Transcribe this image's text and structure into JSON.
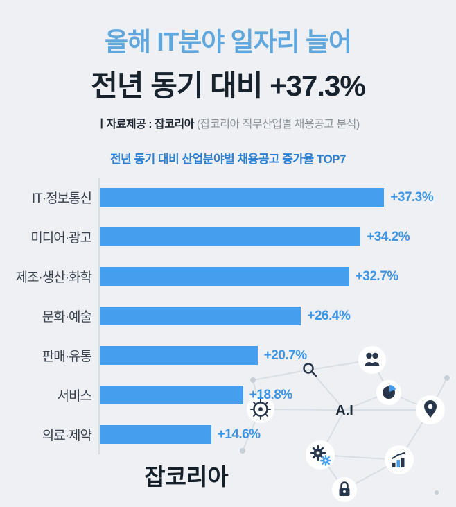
{
  "header": {
    "title_line1": "올해 IT분야 일자리 늘어",
    "title_line2": "전년 동기 대비 +37.3%",
    "source_prefix": "ㅣ자료제공 : ",
    "source_bold": "잡코리아",
    "source_suffix": " (잡코리아 직무산업별 채용공고 분석)"
  },
  "chart_data": {
    "type": "bar",
    "orientation": "horizontal",
    "title": "전년 동기 대비 산업분야별 채용공고 증가율 TOP7",
    "categories": [
      "IT·정보통신",
      "미디어·광고",
      "제조·생산·화학",
      "문화·예술",
      "판매·유통",
      "서비스",
      "의료·제약"
    ],
    "values": [
      37.3,
      34.2,
      32.7,
      26.4,
      20.7,
      18.8,
      14.6
    ],
    "value_labels": [
      "+37.3%",
      "+34.2%",
      "+32.7%",
      "+26.4%",
      "+20.7%",
      "+18.8%",
      "+14.6%"
    ],
    "xlim": [
      0,
      40
    ],
    "bar_color": "#459fee",
    "value_label_color": "#3d95e6",
    "grid": false,
    "legend": "none"
  },
  "footer": {
    "logo_text": "잡코리아"
  },
  "decoration": {
    "ai_label": "A.I",
    "icons": [
      "search-icon",
      "people-icon",
      "pie-chart-icon",
      "ai-label",
      "location-pin-icon",
      "helm-icon",
      "gears-icon",
      "bar-chart-growth-icon",
      "lock-icon"
    ],
    "accent_color": "#459fee",
    "icon_color": "#27364a",
    "line_color": "#d8dee4"
  }
}
